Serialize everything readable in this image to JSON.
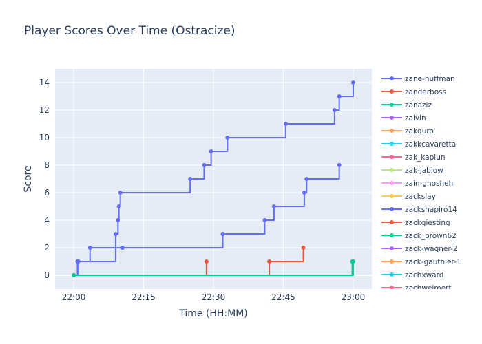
{
  "chart_data": {
    "type": "line",
    "line_shape": "step",
    "title": "Player Scores Over Time (Ostracize)",
    "xlabel": "Time (HH:MM)",
    "ylabel": "Score",
    "xlim": [
      "21:56",
      "23:04"
    ],
    "ylim": [
      -1,
      15
    ],
    "x_ticks": [
      "22:00",
      "22:15",
      "22:30",
      "22:45",
      "23:00"
    ],
    "y_ticks": [
      0,
      2,
      4,
      6,
      8,
      10,
      12,
      14
    ],
    "grid": true,
    "legend_position": "right",
    "series": [
      {
        "name": "zane-huffman",
        "color": "#636efa",
        "points": [
          [
            "22:00",
            0
          ],
          [
            "22:01",
            1
          ],
          [
            "22:09",
            3
          ],
          [
            "22:09.5",
            4
          ],
          [
            "22:09.7",
            5
          ],
          [
            "22:10",
            6
          ],
          [
            "22:25",
            7
          ],
          [
            "22:28",
            8
          ],
          [
            "22:29.5",
            9
          ],
          [
            "22:33",
            10
          ],
          [
            "22:45.5",
            11
          ],
          [
            "22:56",
            12
          ],
          [
            "22:57",
            13
          ],
          [
            "23:00",
            14
          ]
        ]
      },
      {
        "name": "zanderboss",
        "color": "#ef553b",
        "points": [
          [
            "22:00",
            0
          ],
          [
            "22:28.5",
            1
          ]
        ]
      },
      {
        "name": "zanaziz",
        "color": "#00cc96",
        "points": [
          [
            "22:00",
            0
          ],
          [
            "22:59.8",
            1
          ]
        ]
      },
      {
        "name": "zalvin",
        "color": "#ab63fa",
        "points": []
      },
      {
        "name": "zakquro",
        "color": "#ffa15a",
        "points": [
          [
            "22:00",
            0
          ]
        ]
      },
      {
        "name": "zakkcavaretta",
        "color": "#19d3f3",
        "points": []
      },
      {
        "name": "zak_kaplun",
        "color": "#ff6692",
        "points": []
      },
      {
        "name": "zak-jablow",
        "color": "#b6e880",
        "points": []
      },
      {
        "name": "zain-ghosheh",
        "color": "#ff97ff",
        "points": []
      },
      {
        "name": "zackslay",
        "color": "#fecb52",
        "points": []
      },
      {
        "name": "zackshapiro14",
        "color": "#636efa",
        "points": [
          [
            "22:00",
            0
          ],
          [
            "22:00.8",
            1
          ],
          [
            "22:03.5",
            2
          ],
          [
            "22:10.5",
            2
          ],
          [
            "22:32",
            3
          ],
          [
            "22:41",
            4
          ],
          [
            "22:43",
            5
          ],
          [
            "22:49.5",
            6
          ],
          [
            "22:50",
            7
          ],
          [
            "22:57",
            8
          ]
        ]
      },
      {
        "name": "zackgiesting",
        "color": "#ef553b",
        "points": [
          [
            "22:00",
            0
          ],
          [
            "22:42",
            1
          ],
          [
            "22:49.3",
            2
          ]
        ]
      },
      {
        "name": "zack_brown62",
        "color": "#00cc96",
        "points": [
          [
            "22:00",
            0
          ],
          [
            "23:00",
            1
          ]
        ]
      },
      {
        "name": "zack-wagner-2",
        "color": "#ab63fa",
        "points": []
      },
      {
        "name": "zack-gauthier-1",
        "color": "#ffa15a",
        "points": []
      },
      {
        "name": "zachxward",
        "color": "#19d3f3",
        "points": []
      },
      {
        "name": "zachweimert",
        "color": "#ff6692",
        "points": []
      }
    ]
  }
}
